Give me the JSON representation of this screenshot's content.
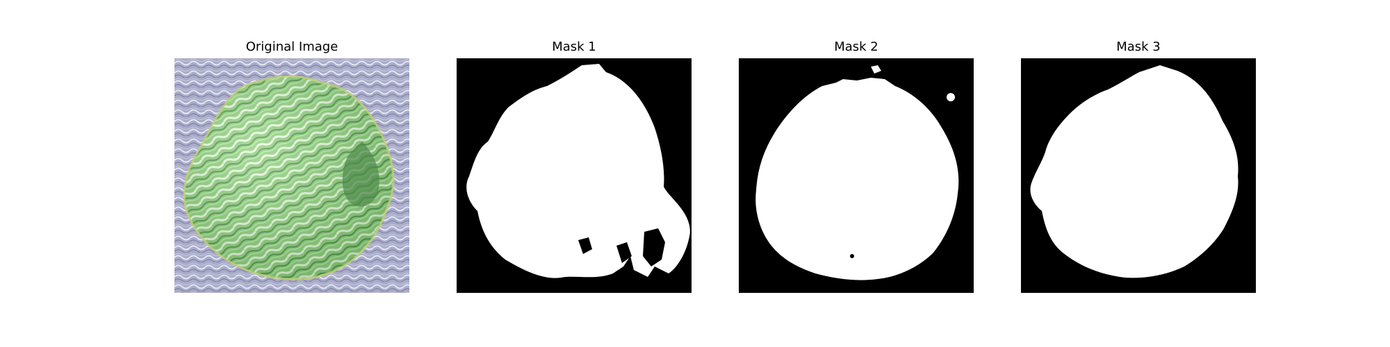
{
  "figure": {
    "panels": [
      {
        "title": "Original Image"
      },
      {
        "title": "Mask 1"
      },
      {
        "title": "Mask 2"
      },
      {
        "title": "Mask 3"
      }
    ]
  },
  "colors": {
    "figure_background": "#ffffff",
    "mask_background": "#000000",
    "mask_foreground": "#ffffff",
    "photo_background": "#a7abc8",
    "leaf_light": "#c8f0b4",
    "leaf_mid": "#7fd66a",
    "leaf_dark": "#4f8a4c"
  }
}
